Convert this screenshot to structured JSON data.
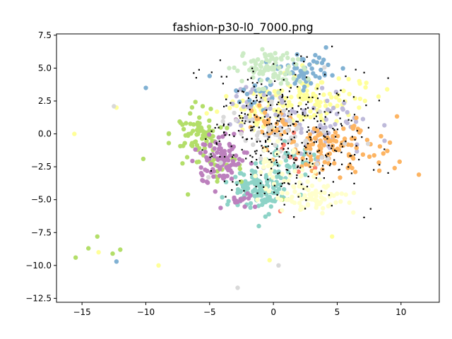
{
  "chart_data": {
    "type": "scatter",
    "title": "fashion-p30-l0_7000.png",
    "xlabel": "",
    "ylabel": "",
    "xlim": [
      -17,
      13
    ],
    "ylim": [
      -12.8,
      7.6
    ],
    "x_ticks": [
      -15,
      -10,
      -5,
      0,
      5,
      10
    ],
    "x_tick_labels": [
      "−15",
      "−10",
      "−5",
      "0",
      "5",
      "10"
    ],
    "y_ticks": [
      7.5,
      5.0,
      2.5,
      0.0,
      -2.5,
      -5.0,
      -7.5,
      -10.0,
      -12.5
    ],
    "y_tick_labels": [
      "7.5",
      "5.0",
      "2.5",
      "0.0",
      "−2.5",
      "−5.0",
      "−7.5",
      "−10.0",
      "−12.5"
    ],
    "grid": false,
    "legend": "none",
    "series": [
      {
        "color": "#8dd3c7",
        "clusters": [
          {
            "cx": -1.0,
            "cy": -4.3,
            "sx": 1.3,
            "sy": 0.8,
            "n": 130
          },
          {
            "cx": 1.5,
            "cy": -1.8,
            "sx": 1.0,
            "sy": 0.6,
            "n": 35
          }
        ],
        "points": [
          [
            -2.8,
            -5.4
          ],
          [
            -1.8,
            -5.6
          ],
          [
            2.5,
            -3.1
          ]
        ]
      },
      {
        "color": "#ffff99",
        "clusters": [
          {
            "cx": 2.8,
            "cy": 2.8,
            "sx": 2.0,
            "sy": 0.8,
            "n": 110
          },
          {
            "cx": -1.5,
            "cy": 1.8,
            "sx": 1.2,
            "sy": 0.7,
            "n": 45
          }
        ],
        "points": [
          [
            -15.6,
            0.0
          ],
          [
            -12.3,
            2.0
          ],
          [
            -9.0,
            -10.0
          ],
          [
            -13.7,
            -9.0
          ],
          [
            4.6,
            -7.8
          ],
          [
            -0.3,
            -9.6
          ]
        ]
      },
      {
        "color": "#bebada",
        "clusters": [
          {
            "cx": 4.0,
            "cy": 0.5,
            "sx": 2.2,
            "sy": 1.2,
            "n": 60
          },
          {
            "cx": -1.0,
            "cy": 2.0,
            "sx": 1.5,
            "sy": 1.0,
            "n": 25
          }
        ],
        "points": []
      },
      {
        "color": "#fb8072",
        "clusters": [
          {
            "cx": 1.0,
            "cy": -2.0,
            "sx": 1.5,
            "sy": 1.5,
            "n": 8
          }
        ],
        "points": []
      },
      {
        "color": "#80b1d3",
        "clusters": [
          {
            "cx": 2.5,
            "cy": 4.8,
            "sx": 1.2,
            "sy": 0.6,
            "n": 55
          },
          {
            "cx": -2.0,
            "cy": 3.0,
            "sx": 1.2,
            "sy": 0.8,
            "n": 18
          }
        ],
        "points": [
          [
            -5.0,
            4.4
          ],
          [
            -10.0,
            3.5
          ],
          [
            -12.3,
            -9.7
          ]
        ]
      },
      {
        "color": "#fdb462",
        "clusters": [
          {
            "cx": 4.5,
            "cy": -1.0,
            "sx": 2.2,
            "sy": 0.9,
            "n": 110
          },
          {
            "cx": 0.0,
            "cy": 0.8,
            "sx": 1.0,
            "sy": 0.6,
            "n": 30
          }
        ],
        "points": [
          [
            9.5,
            -2.6
          ],
          [
            11.4,
            -3.1
          ],
          [
            8.3,
            -2.8
          ]
        ]
      },
      {
        "color": "#b3de69",
        "clusters": [
          {
            "cx": -5.8,
            "cy": -0.2,
            "sx": 0.8,
            "sy": 1.0,
            "n": 75
          },
          {
            "cx": -4.0,
            "cy": -2.5,
            "sx": 0.8,
            "sy": 0.8,
            "n": 20
          }
        ],
        "points": [
          [
            -8.2,
            0.0
          ],
          [
            -8.2,
            -0.7
          ],
          [
            -10.2,
            -1.9
          ],
          [
            -15.5,
            -9.4
          ],
          [
            -12.0,
            -8.8
          ],
          [
            -13.8,
            -7.8
          ],
          [
            -14.5,
            -8.7
          ],
          [
            -6.7,
            -4.6
          ],
          [
            -12.6,
            -9.1
          ],
          [
            0.7,
            -5.0
          ]
        ]
      },
      {
        "color": "#bc80bd",
        "clusters": [
          {
            "cx": -4.2,
            "cy": -1.8,
            "sx": 0.9,
            "sy": 1.0,
            "n": 95
          },
          {
            "cx": -2.5,
            "cy": -5.0,
            "sx": 0.6,
            "sy": 0.3,
            "n": 15
          }
        ],
        "points": []
      },
      {
        "color": "#d9d9d9",
        "clusters": [
          {
            "cx": 0.5,
            "cy": 0.0,
            "sx": 2.8,
            "sy": 1.8,
            "n": 60
          }
        ],
        "points": [
          [
            -12.5,
            2.1
          ],
          [
            -2.8,
            -11.7
          ],
          [
            0.4,
            -10.0
          ]
        ]
      },
      {
        "color": "#ccebc5",
        "clusters": [
          {
            "cx": -0.2,
            "cy": 5.0,
            "sx": 1.2,
            "sy": 0.7,
            "n": 90
          }
        ],
        "points": []
      },
      {
        "color": "#ffffcc",
        "clusters": [
          {
            "cx": 2.8,
            "cy": -4.8,
            "sx": 1.5,
            "sy": 0.6,
            "n": 80
          },
          {
            "cx": 0.5,
            "cy": -2.5,
            "sx": 1.3,
            "sy": 1.0,
            "n": 35
          }
        ],
        "points": []
      }
    ],
    "black_points": {
      "color": "#000000",
      "clusters": [
        {
          "cx": 1.0,
          "cy": 0.0,
          "sx": 3.0,
          "sy": 3.0,
          "n": 380
        }
      ]
    }
  }
}
